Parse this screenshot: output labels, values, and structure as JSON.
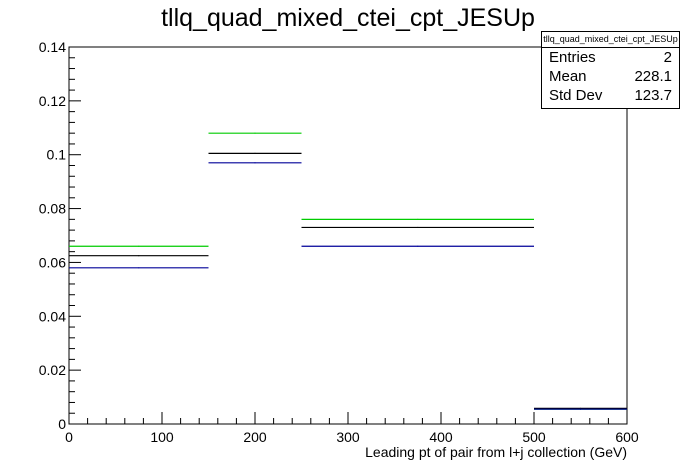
{
  "chart_data": {
    "type": "histogram",
    "title": "tllq_quad_mixed_ctei_cpt_JESUp",
    "xlabel": "Leading pt of pair from l+j collection (GeV)",
    "ylabel": "",
    "xlim": [
      0,
      600
    ],
    "ylim": [
      0,
      0.14
    ],
    "x_ticks": [
      "0",
      "100",
      "200",
      "300",
      "400",
      "500",
      "600"
    ],
    "y_ticks": [
      "0",
      "0.02",
      "0.04",
      "0.06",
      "0.08",
      "0.1",
      "0.12",
      "0.14"
    ],
    "bin_edges": [
      0,
      150,
      250,
      500,
      600
    ],
    "series": [
      {
        "color": "#00cc00",
        "values": [
          0.066,
          0.108,
          0.076,
          0.0055
        ]
      },
      {
        "color": "#000000",
        "values": [
          0.0625,
          0.1005,
          0.073,
          0.0058
        ]
      },
      {
        "color": "#000099",
        "values": [
          0.058,
          0.097,
          0.066,
          0.0055
        ]
      }
    ],
    "grid": false,
    "legend": "none"
  },
  "stats": {
    "title": "tllq_quad_mixed_ctei_cpt_JESUp",
    "rows": [
      {
        "label": "Entries",
        "value": "2"
      },
      {
        "label": "Mean",
        "value": "228.1"
      },
      {
        "label": "Std Dev",
        "value": "123.7"
      }
    ]
  }
}
